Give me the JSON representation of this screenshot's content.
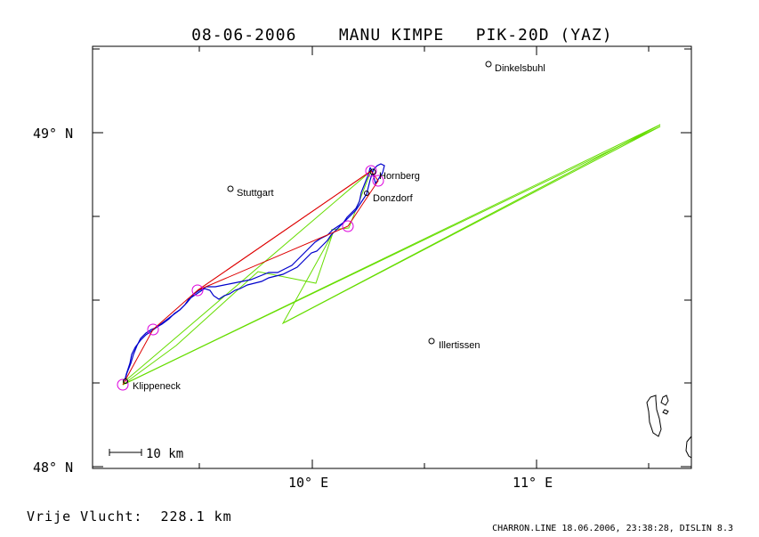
{
  "title": {
    "date": "08-06-2006",
    "pilot": "MANU KIMPE",
    "glider": "PIK-20D (YAZ)"
  },
  "axes": {
    "lat_labels": [
      "49° N",
      "48° N"
    ],
    "lon_labels": [
      "10° E",
      "11° E"
    ]
  },
  "places": [
    {
      "name": "Dinkelsbuhl"
    },
    {
      "name": "Hornberg"
    },
    {
      "name": "Stuttgart"
    },
    {
      "name": "Donzdorf"
    },
    {
      "name": "Illertissen"
    },
    {
      "name": "Klippeneck"
    }
  ],
  "scale_bar": {
    "label": "10 km"
  },
  "footer": {
    "distance": "Vrije Vlucht:  228.1 km",
    "credit": "CHARRON.LINE 18.06.2006, 23:38:28, DISLIN 8.3"
  },
  "colors": {
    "track": "#0000cc",
    "task": "#dd0000",
    "declared": "#66dd00",
    "turnpoint": "#dd00dd"
  }
}
